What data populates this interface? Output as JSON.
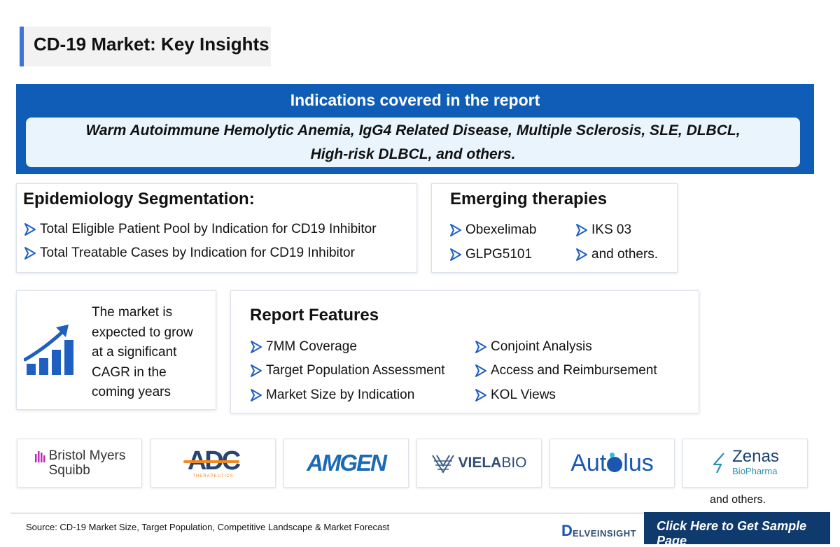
{
  "title": "CD-19 Market: Key Insights",
  "indications": {
    "heading": "Indications covered in the report",
    "line1": "Warm Autoimmune Hemolytic Anemia, IgG4 Related Disease, Multiple Sclerosis, SLE, DLBCL,",
    "line2": "High-risk DLBCL, and others."
  },
  "epidemiology": {
    "heading": "Epidemiology Segmentation:",
    "items": [
      "Total Eligible Patient Pool by Indication for CD19 Inhibitor",
      "Total Treatable Cases by Indication for CD19 Inhibitor"
    ]
  },
  "therapies": {
    "heading": "Emerging therapies",
    "items": [
      "Obexelimab",
      "IKS 03",
      "GLPG5101",
      "and others."
    ]
  },
  "growth": {
    "text_lines": [
      "The market is",
      "expected to grow",
      "at a significant",
      "CAGR in the",
      "coming years"
    ],
    "icon": "growth-chart-icon"
  },
  "features": {
    "heading": "Report Features",
    "items": [
      "7MM Coverage",
      "Conjoint Analysis",
      "Target Population Assessment",
      "Access and Reimbursement",
      "Market Size by Indication",
      "KOL Views"
    ]
  },
  "logos": {
    "bms_line1": "Bristol Myers",
    "bms_line2": "Squibb",
    "adc_main": "ADC",
    "adc_sub": "THERAPEUTICS",
    "amgen": "AMGEN",
    "viela_a": "VIELA",
    "viela_b": "BIO",
    "autolus_a": "Aut",
    "autolus_b": "lus",
    "zenas_a": "Zenas",
    "zenas_b": "BioPharma"
  },
  "and_others": "and others.",
  "footer": {
    "source": "Source: CD-19 Market Size, Target Population, Competitive Landscape & Market Forecast",
    "brand_letter": "D",
    "brand_rest": "ELVEINSIGHT",
    "cta": "Click Here to Get Sample Page"
  },
  "colors": {
    "primary_blue": "#0f5db6",
    "light_blue": "#e9f4fc",
    "accent_blue": "#3d74d6",
    "dark_navy": "#0f3a6e",
    "chevron_blue": "#1f5fc2",
    "amgen_blue": "#1a6ab5",
    "bms_purple": "#be2bbb",
    "adc_orange": "#f08a22"
  }
}
